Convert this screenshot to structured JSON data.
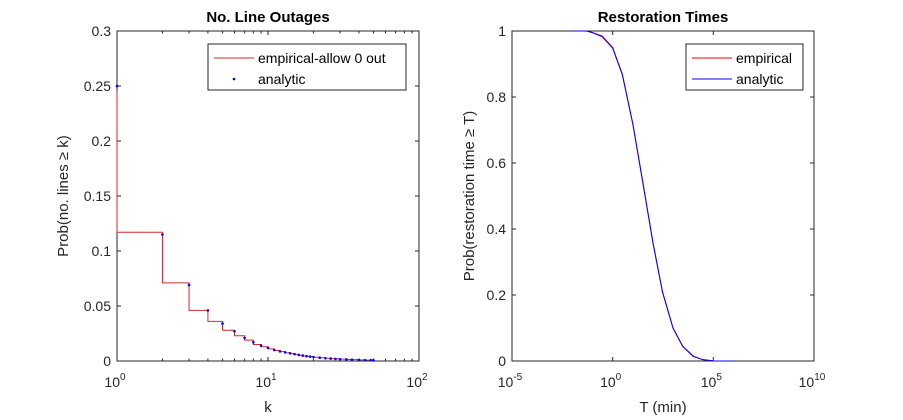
{
  "chart_data": [
    {
      "type": "line",
      "title": "No. Line Outages",
      "xlabel": "k",
      "ylabel": "Prob(no. lines ≥ k)",
      "xscale": "log",
      "xlim": [
        1,
        100
      ],
      "ylim": [
        0,
        0.3
      ],
      "xticks": [
        {
          "value": 1,
          "base": "10",
          "exp": "0"
        },
        {
          "value": 10,
          "base": "10",
          "exp": "1"
        },
        {
          "value": 100,
          "base": "10",
          "exp": "2"
        }
      ],
      "yticks": [
        {
          "value": 0,
          "label": "0"
        },
        {
          "value": 0.05,
          "label": "0.05"
        },
        {
          "value": 0.1,
          "label": "0.1"
        },
        {
          "value": 0.15,
          "label": "0.15"
        },
        {
          "value": 0.2,
          "label": "0.2"
        },
        {
          "value": 0.25,
          "label": "0.25"
        },
        {
          "value": 0.3,
          "label": "0.3"
        }
      ],
      "legend": {
        "location": "top-right"
      },
      "series": [
        {
          "name": "empirical-allow 0 out",
          "style": "step-line",
          "color": "#d62728"
        },
        {
          "name": "analytic",
          "style": "dots",
          "color": "#0000ff"
        }
      ],
      "k": [
        1,
        2,
        3,
        4,
        5,
        6,
        7,
        8,
        9,
        10,
        11,
        12,
        13,
        14,
        15,
        16,
        17,
        18,
        19,
        20,
        22,
        24,
        26,
        28,
        30,
        33,
        36,
        40,
        44,
        48,
        50
      ],
      "prob": [
        0.117,
        0.071,
        0.046,
        0.036,
        0.028,
        0.023,
        0.019,
        0.015,
        0.013,
        0.011,
        0.0095,
        0.0085,
        0.0075,
        0.0067,
        0.006,
        0.0053,
        0.0047,
        0.0042,
        0.0038,
        0.0034,
        0.0029,
        0.0025,
        0.0022,
        0.0019,
        0.0017,
        0.0014,
        0.0012,
        0.001,
        0.0008,
        0.0007,
        0.0006
      ],
      "first_step_top": 0.245,
      "analytic_points": [
        [
          1,
          0.25
        ],
        [
          2,
          0.115
        ],
        [
          3,
          0.069
        ],
        [
          4,
          0.046
        ],
        [
          5,
          0.034
        ],
        [
          6,
          0.027
        ],
        [
          7,
          0.021
        ],
        [
          8,
          0.017
        ],
        [
          9,
          0.014
        ],
        [
          10,
          0.012
        ],
        [
          11,
          0.01
        ],
        [
          12,
          0.0088
        ],
        [
          13,
          0.0078
        ],
        [
          14,
          0.007
        ],
        [
          15,
          0.0062
        ],
        [
          16,
          0.0055
        ],
        [
          17,
          0.0049
        ],
        [
          18,
          0.0044
        ],
        [
          19,
          0.004
        ],
        [
          20,
          0.0036
        ],
        [
          22,
          0.003
        ],
        [
          24,
          0.0025
        ],
        [
          26,
          0.0022
        ],
        [
          28,
          0.0019
        ],
        [
          30,
          0.0017
        ],
        [
          33,
          0.0014
        ],
        [
          36,
          0.0012
        ],
        [
          40,
          0.001
        ],
        [
          44,
          0.0008
        ],
        [
          48,
          0.0007
        ],
        [
          50,
          0.0006
        ]
      ]
    },
    {
      "type": "line",
      "title": "Restoration Times",
      "xlabel": "T (min)",
      "ylabel": "Prob(restoration time ≥ T)",
      "xscale": "log",
      "xlim": [
        1e-05,
        10000000000
      ],
      "ylim": [
        0,
        1
      ],
      "xticks": [
        {
          "value": 1e-05,
          "base": "10",
          "exp": "-5"
        },
        {
          "value": 1,
          "base": "10",
          "exp": "0"
        },
        {
          "value": 100000,
          "base": "10",
          "exp": "5"
        },
        {
          "value": 10000000000,
          "base": "10",
          "exp": "10"
        }
      ],
      "yticks": [
        {
          "value": 0,
          "label": "0"
        },
        {
          "value": 0.2,
          "label": "0.2"
        },
        {
          "value": 0.4,
          "label": "0.4"
        },
        {
          "value": 0.6,
          "label": "0.6"
        },
        {
          "value": 0.8,
          "label": "0.8"
        },
        {
          "value": 1,
          "label": "1"
        }
      ],
      "legend": {
        "location": "top-right"
      },
      "series": [
        {
          "name": "empirical",
          "color": "#ff0000",
          "T": [
            0.01,
            0.05,
            0.1,
            0.3,
            1,
            3,
            10,
            30,
            100,
            300,
            1000,
            3000,
            10000,
            30000,
            100000,
            1000000
          ],
          "prob": [
            1.0,
            1.0,
            0.995,
            0.985,
            0.95,
            0.87,
            0.72,
            0.55,
            0.36,
            0.21,
            0.1,
            0.045,
            0.015,
            0.004,
            0.0005,
            0.0
          ]
        },
        {
          "name": "analytic",
          "color": "#0000ff",
          "T": [
            0.01,
            0.05,
            0.1,
            0.3,
            1,
            3,
            10,
            30,
            100,
            300,
            1000,
            3000,
            10000,
            30000,
            100000,
            1000000
          ],
          "prob": [
            1.0,
            1.0,
            0.995,
            0.983,
            0.948,
            0.868,
            0.718,
            0.548,
            0.358,
            0.208,
            0.099,
            0.044,
            0.014,
            0.004,
            0.0005,
            0.0
          ]
        }
      ]
    }
  ]
}
